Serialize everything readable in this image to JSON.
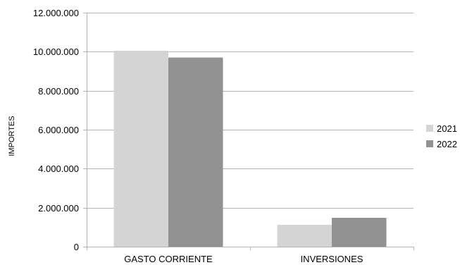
{
  "chart_data": {
    "type": "bar",
    "title": "",
    "xlabel": "",
    "ylabel": "IMPORTES",
    "categories": [
      "GASTO CORRIENTE",
      "INVERSIONES"
    ],
    "series": [
      {
        "name": "2021",
        "values": [
          10050000,
          1120000
        ],
        "color": "#d4d4d4"
      },
      {
        "name": "2022",
        "values": [
          9700000,
          1480000
        ],
        "color": "#919191"
      }
    ],
    "ylim": [
      0,
      12000000
    ],
    "yticks": [
      0,
      2000000,
      4000000,
      6000000,
      8000000,
      10000000,
      12000000
    ],
    "ytick_labels": [
      "0",
      "2.000.000",
      "4.000.000",
      "6.000.000",
      "8.000.000",
      "10.000.000",
      "12.000.000"
    ],
    "grid": true,
    "legend_position": "right"
  }
}
